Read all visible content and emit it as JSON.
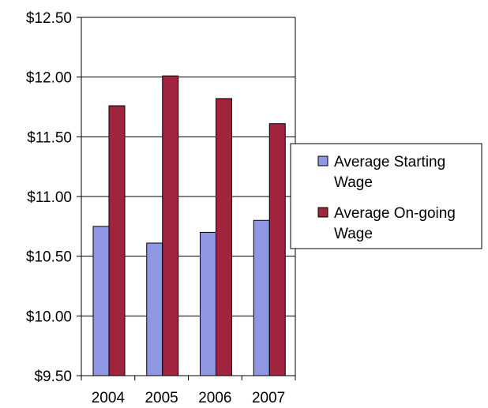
{
  "chart_data": {
    "type": "bar",
    "categories": [
      "2004",
      "2005",
      "2006",
      "2007"
    ],
    "series": [
      {
        "name": "Average Starting Wage",
        "color": "#8f97e2",
        "values": [
          10.75,
          10.61,
          10.7,
          10.8
        ]
      },
      {
        "name": "Average On-going Wage",
        "color": "#a0243e",
        "values": [
          11.76,
          12.01,
          11.82,
          11.61
        ]
      }
    ],
    "ylim": [
      9.5,
      12.5
    ],
    "yticks": [
      "$9.50",
      "$10.00",
      "$10.50",
      "$11.00",
      "$11.50",
      "$12.00",
      "$12.50"
    ],
    "grid": true,
    "legend_position": "right",
    "legend": [
      {
        "lines": [
          "Average Starting",
          "Wage"
        ]
      },
      {
        "lines": [
          "Average On-going",
          "Wage"
        ]
      }
    ]
  }
}
